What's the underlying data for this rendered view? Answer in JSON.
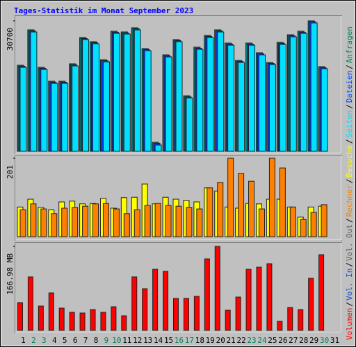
{
  "title": "Tages-Statistik im Monat September 2023",
  "categories": [
    "1",
    "2",
    "3",
    "4",
    "5",
    "6",
    "7",
    "8",
    "9",
    "10",
    "11",
    "12",
    "13",
    "14",
    "15",
    "16",
    "17",
    "18",
    "19",
    "20",
    "21",
    "22",
    "23",
    "24",
    "25",
    "26",
    "27",
    "28",
    "29",
    "30",
    "31"
  ],
  "category_colors": [
    "#000000",
    "#00805c",
    "#00805c",
    "#000000",
    "#000000",
    "#000000",
    "#000000",
    "#000000",
    "#00805c",
    "#00805c",
    "#000000",
    "#000000",
    "#000000",
    "#000000",
    "#000000",
    "#00805c",
    "#00805c",
    "#000000",
    "#000000",
    "#000000",
    "#000000",
    "#000000",
    "#00805c",
    "#00805c",
    "#000000",
    "#000000",
    "#000000",
    "#000000",
    "#000000",
    "#00805c",
    "#000000"
  ],
  "legend": {
    "separator": "/",
    "items": [
      {
        "name": "Volumen",
        "color": "#ff0000"
      },
      {
        "name": "Vol. In",
        "color": "#2050c0"
      },
      {
        "name": "Vol. Out",
        "color": "#606060"
      },
      {
        "name": "Rechner",
        "color": "#ff8000"
      },
      {
        "name": "Besuche",
        "color": "#ffff00"
      },
      {
        "name": "Seiten",
        "color": "#00e0ff"
      },
      {
        "name": "Dateien",
        "color": "#0040ff"
      },
      {
        "name": "Anfragen",
        "color": "#00805c"
      }
    ]
  },
  "chart_data": [
    {
      "type": "bar",
      "ylim": [
        0,
        30700
      ],
      "yticks": [
        30700
      ],
      "series": [
        {
          "name": "Anfragen",
          "color": "#008080",
          "values": [
            20250,
            28580,
            19760,
            16490,
            16490,
            20580,
            26780,
            25800,
            21550,
            28250,
            28090,
            29070,
            24170,
            2120,
            22700,
            26290,
            13060,
            24500,
            27270,
            28580,
            25470,
            21390,
            25470,
            23190,
            20900,
            25640,
            27430,
            28250,
            30700,
            19920,
            null
          ]
        },
        {
          "name": "Dateien",
          "color": "#0040ff",
          "values": [
            20000,
            28330,
            19510,
            16240,
            16240,
            20330,
            26530,
            25550,
            21300,
            28000,
            27840,
            28820,
            23920,
            1870,
            22450,
            26040,
            12810,
            24250,
            27020,
            28330,
            25220,
            21140,
            25220,
            22940,
            20650,
            25390,
            27180,
            28000,
            30450,
            19670,
            null
          ]
        },
        {
          "name": "Seiten",
          "color": "#00e0ff",
          "values": [
            19750,
            28080,
            19260,
            15990,
            15990,
            20080,
            26280,
            25300,
            21050,
            27750,
            27590,
            28570,
            23670,
            1470,
            22200,
            25790,
            12560,
            24000,
            26770,
            28080,
            24970,
            20890,
            24970,
            22690,
            20400,
            25140,
            26930,
            27750,
            30200,
            19420,
            null
          ]
        }
      ]
    },
    {
      "type": "bar",
      "ylim": [
        0,
        201
      ],
      "yticks": [
        201
      ],
      "series": [
        {
          "name": "Besuche",
          "color": "#ffff00",
          "values": [
            76,
            96,
            75,
            69,
            89,
            91,
            84,
            85,
            98,
            73,
            100,
            101,
            135,
            84,
            101,
            96,
            93,
            89,
            125,
            117,
            76,
            73,
            85,
            84,
            96,
            96,
            76,
            50,
            76,
            78,
            null
          ]
        },
        {
          "name": "Rechner",
          "color": "#ff8000",
          "values": [
            69,
            84,
            71,
            59,
            73,
            75,
            78,
            84,
            85,
            71,
            59,
            69,
            80,
            85,
            80,
            78,
            75,
            71,
            125,
            139,
            201,
            162,
            142,
            71,
            201,
            176,
            76,
            44,
            62,
            82,
            null
          ]
        }
      ]
    },
    {
      "type": "bar",
      "ylim": [
        0,
        166.98
      ],
      "yticks": [
        {
          "value": 166.98,
          "label": "166.98 MB"
        }
      ],
      "series": [
        {
          "name": "Volumen",
          "color": "#ff0000",
          "values": [
            55.2,
            106.3,
            48.3,
            74.5,
            44.2,
            35.9,
            34.5,
            41.4,
            35.9,
            46.9,
            29.0,
            106.3,
            82.8,
            121.4,
            117.3,
            63.5,
            63.5,
            67.6,
            142.1,
            166.98,
            40.0,
            66.2,
            121.4,
            125.6,
            132.5,
            17.9,
            45.5,
            41.4,
            103.5,
            150.4,
            null
          ]
        }
      ]
    }
  ]
}
